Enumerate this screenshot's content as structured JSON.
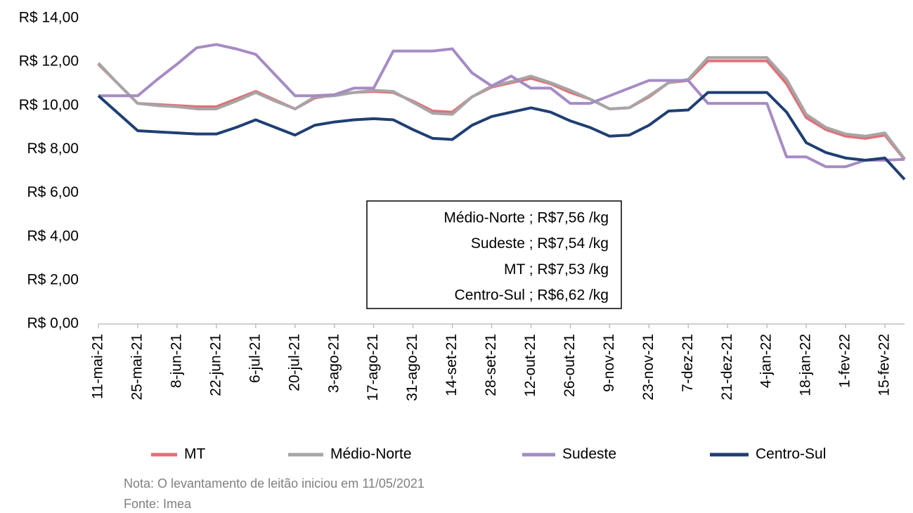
{
  "chart_data": {
    "type": "line",
    "categories": [
      "11-mai-21",
      null,
      "25-mai-21",
      null,
      "8-jun-21",
      null,
      "22-jun-21",
      null,
      "6-jul-21",
      null,
      "20-jul-21",
      null,
      "3-ago-21",
      null,
      "17-ago-21",
      null,
      "31-ago-21",
      null,
      "14-set-21",
      null,
      "28-set-21",
      null,
      "12-out-21",
      null,
      "26-out-21",
      null,
      "9-nov-21",
      null,
      "23-nov-21",
      null,
      "7-dez-21",
      null,
      "21-dez-21",
      null,
      "4-jan-22",
      null,
      "18-jan-22",
      null,
      "1-fev-22",
      null,
      "15-fev-22",
      null
    ],
    "series": [
      {
        "name": "MT",
        "color": "#e07078",
        "values": [
          11.9,
          11.0,
          10.1,
          10.05,
          10.0,
          9.95,
          9.95,
          10.3,
          10.65,
          10.25,
          9.85,
          10.35,
          10.5,
          10.6,
          10.65,
          10.6,
          10.2,
          9.75,
          9.7,
          10.4,
          10.85,
          11.05,
          11.25,
          11.0,
          10.6,
          10.3,
          9.85,
          9.9,
          10.4,
          11.05,
          11.15,
          12.05,
          12.05,
          12.05,
          12.05,
          11.0,
          9.45,
          8.9,
          8.6,
          8.5,
          8.65,
          7.53
        ]
      },
      {
        "name": "Médio-Norte",
        "color": "#a6a6a6",
        "values": [
          11.95,
          11.0,
          10.1,
          10.0,
          9.95,
          9.85,
          9.85,
          10.2,
          10.6,
          10.2,
          9.85,
          10.4,
          10.45,
          10.6,
          10.7,
          10.65,
          10.15,
          9.65,
          9.6,
          10.4,
          10.9,
          11.1,
          11.35,
          11.05,
          10.7,
          10.3,
          9.85,
          9.9,
          10.45,
          11.05,
          11.2,
          12.2,
          12.2,
          12.2,
          12.2,
          11.2,
          9.6,
          9.0,
          8.7,
          8.6,
          8.75,
          7.56
        ]
      },
      {
        "name": "Sudeste",
        "color": "#a68bc4",
        "values": [
          10.45,
          10.45,
          10.45,
          11.2,
          11.9,
          12.65,
          12.8,
          12.6,
          12.35,
          11.4,
          10.45,
          10.45,
          10.5,
          10.8,
          10.8,
          12.5,
          12.5,
          12.5,
          12.6,
          11.5,
          10.9,
          11.35,
          10.8,
          10.8,
          10.1,
          10.1,
          10.45,
          10.8,
          11.15,
          11.15,
          11.15,
          10.1,
          10.1,
          10.1,
          10.1,
          7.65,
          7.65,
          7.2,
          7.2,
          7.5,
          7.5,
          7.54
        ]
      },
      {
        "name": "Centro-Sul",
        "color": "#1f3f73",
        "values": [
          10.45,
          9.65,
          8.85,
          8.8,
          8.75,
          8.7,
          8.7,
          9.0,
          9.35,
          9.0,
          8.65,
          9.1,
          9.25,
          9.35,
          9.4,
          9.35,
          8.9,
          8.5,
          8.45,
          9.1,
          9.5,
          9.7,
          9.9,
          9.7,
          9.3,
          9.0,
          8.6,
          8.65,
          9.1,
          9.75,
          9.8,
          10.6,
          10.6,
          10.6,
          10.6,
          9.7,
          8.3,
          7.85,
          7.6,
          7.5,
          7.6,
          6.62
        ]
      }
    ],
    "ylim": [
      0,
      14
    ],
    "yticks": [
      {
        "value": 0,
        "label": "R$ 0,00"
      },
      {
        "value": 2,
        "label": "R$ 2,00"
      },
      {
        "value": 4,
        "label": "R$ 4,00"
      },
      {
        "value": 6,
        "label": "R$ 6,00"
      },
      {
        "value": 8,
        "label": "R$ 8,00"
      },
      {
        "value": 10,
        "label": "R$ 10,00"
      },
      {
        "value": 12,
        "label": "R$ 12,00"
      },
      {
        "value": 14,
        "label": "R$ 14,00"
      }
    ],
    "grid": false,
    "legend": "bottom",
    "annotations": [
      "Médio-Norte ;  R$7,56 /kg",
      "Sudeste ;  R$7,54 /kg",
      "MT ;  R$7,53 /kg",
      "Centro-Sul ;  R$6,62 /kg"
    ],
    "notes": [
      "Nota: O levantamento de leitão iniciou em 11/05/2021",
      "Fonte: Imea"
    ]
  }
}
